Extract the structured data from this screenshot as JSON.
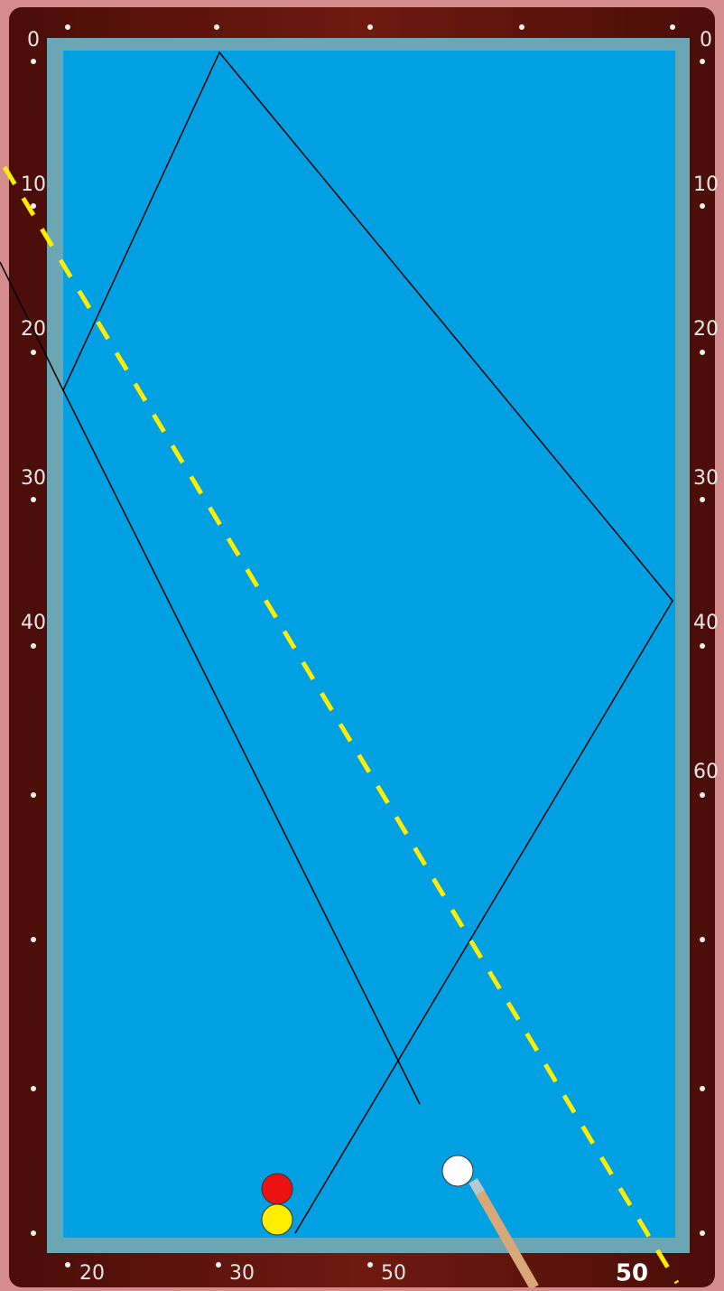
{
  "rail_labels": {
    "left": [
      "0",
      "10",
      "20",
      "30",
      "40"
    ],
    "right": [
      "0",
      "10",
      "20",
      "30",
      "40",
      "60"
    ],
    "bottom": [
      "20",
      "30",
      "50"
    ]
  },
  "shot_label": "50"
}
